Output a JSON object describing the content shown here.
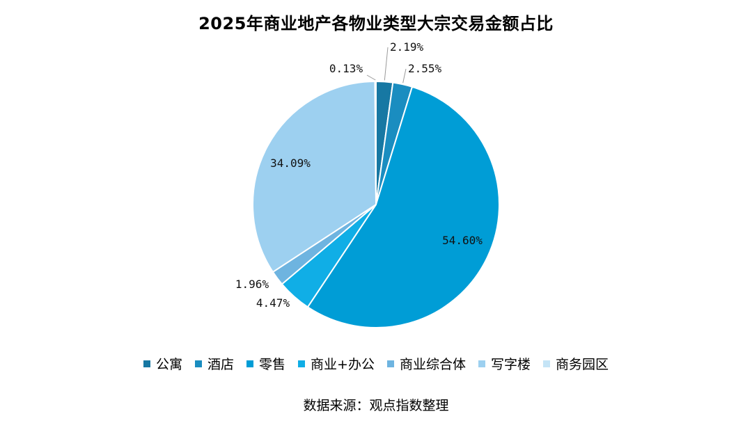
{
  "chart_data": {
    "type": "pie",
    "title": "2025年商业地产各物业类型大宗交易金额占比",
    "categories": [
      "公寓",
      "酒店",
      "零售",
      "商业+办公",
      "商业综合体",
      "写字楼",
      "商务园区"
    ],
    "values": [
      2.19,
      2.55,
      54.6,
      4.47,
      1.96,
      34.09,
      0.13
    ],
    "labels": [
      "2.19%",
      "2.55%",
      "54.60%",
      "4.47%",
      "1.96%",
      "34.09%",
      "0.13%"
    ],
    "colors": [
      "#1778a3",
      "#1a8dc0",
      "#009dd6",
      "#10aee6",
      "#6eb4e0",
      "#9dd0f0",
      "#c5e4f6"
    ],
    "legend_position": "bottom",
    "start_angle": "12 o'clock",
    "direction": "clockwise"
  },
  "source": "数据来源：观点指数整理"
}
